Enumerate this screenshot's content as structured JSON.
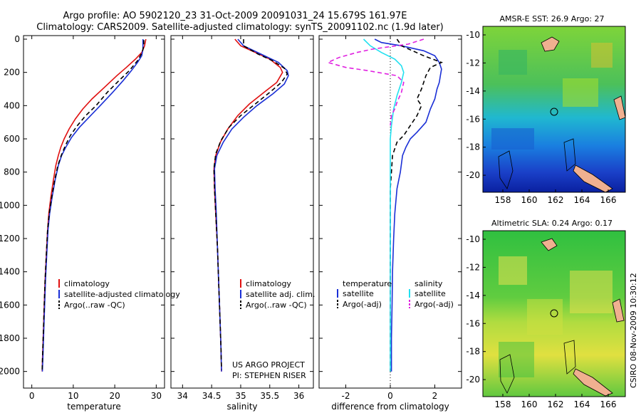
{
  "header": {
    "line1": "Argo profile: AO 5902120_23 31-Oct-2009 20091031_24 15.679S 161.97E",
    "line2": "Climatology: CARS2009. Satellite-adjusted climatology: synTS_20091102.nc (1.9d later)"
  },
  "colors": {
    "clim": "#e01010",
    "sat": "#1a2fd6",
    "argo": "#000000",
    "sal_sat": "#22e0f0",
    "sal_argo": "#e020e0",
    "land": "#f0b090"
  },
  "chart_data": [
    {
      "type": "line",
      "name": "temperature-profile",
      "xlabel": "temperature",
      "xlim": [
        -2,
        32
      ],
      "ylim": [
        0,
        2100
      ],
      "xticks": [
        0,
        10,
        20,
        30
      ],
      "yticks": [
        0,
        200,
        400,
        600,
        800,
        1000,
        1200,
        1400,
        1600,
        1800,
        2000
      ],
      "ytick_labels": [
        "0",
        "200",
        "400",
        "600",
        "800",
        "1000",
        "1200",
        "1400",
        "1600",
        "1800",
        "2000"
      ],
      "legend": {
        "items": [
          "climatology",
          "satellite-adjusted climatology",
          "Argo(..raw -QC)"
        ],
        "position": "lower-right"
      },
      "series": [
        {
          "name": "climatology",
          "color": "#e01010",
          "dash": "",
          "points": [
            [
              27.5,
              0
            ],
            [
              27.2,
              40
            ],
            [
              26.5,
              80
            ],
            [
              25,
              120
            ],
            [
              22.8,
              170
            ],
            [
              20.5,
              220
            ],
            [
              17.5,
              290
            ],
            [
              14.5,
              360
            ],
            [
              12.3,
              420
            ],
            [
              10.5,
              480
            ],
            [
              9,
              540
            ],
            [
              7.8,
              600
            ],
            [
              7,
              650
            ],
            [
              6.4,
              700
            ],
            [
              5.8,
              760
            ],
            [
              5.2,
              850
            ],
            [
              4.6,
              950
            ],
            [
              4.1,
              1050
            ],
            [
              3.8,
              1150
            ],
            [
              3.5,
              1300
            ],
            [
              3.2,
              1450
            ],
            [
              3,
              1600
            ],
            [
              2.8,
              1750
            ],
            [
              2.6,
              1900
            ],
            [
              2.5,
              2000
            ]
          ]
        },
        {
          "name": "satellite-adjusted climatology",
          "color": "#1a2fd6",
          "dash": "",
          "points": [
            [
              26.8,
              0
            ],
            [
              26.8,
              60
            ],
            [
              26.5,
              100
            ],
            [
              25.5,
              140
            ],
            [
              24,
              190
            ],
            [
              22,
              250
            ],
            [
              19.5,
              320
            ],
            [
              16.5,
              400
            ],
            [
              13.8,
              470
            ],
            [
              11.5,
              530
            ],
            [
              9.6,
              590
            ],
            [
              8.2,
              650
            ],
            [
              7.2,
              700
            ],
            [
              6.4,
              760
            ],
            [
              5.6,
              850
            ],
            [
              4.9,
              950
            ],
            [
              4.3,
              1050
            ],
            [
              3.9,
              1150
            ],
            [
              3.6,
              1300
            ],
            [
              3.3,
              1450
            ],
            [
              3.1,
              1600
            ],
            [
              2.9,
              1750
            ],
            [
              2.7,
              1900
            ],
            [
              2.55,
              2000
            ]
          ]
        },
        {
          "name": "Argo(..raw -QC)",
          "color": "#000000",
          "dash": "6,4",
          "points": [
            [
              27,
              5
            ],
            [
              27,
              40
            ],
            [
              26.6,
              80
            ],
            [
              25.5,
              130
            ],
            [
              23.5,
              190
            ],
            [
              21,
              250
            ],
            [
              18.2,
              320
            ],
            [
              15.5,
              400
            ],
            [
              13,
              460
            ],
            [
              11,
              520
            ],
            [
              9.3,
              580
            ],
            [
              8.1,
              640
            ],
            [
              7.1,
              700
            ],
            [
              6.3,
              760
            ],
            [
              5.5,
              850
            ],
            [
              4.8,
              950
            ],
            [
              4.2,
              1050
            ],
            [
              3.8,
              1150
            ],
            [
              3.5,
              1300
            ],
            [
              3.2,
              1450
            ],
            [
              3,
              1600
            ],
            [
              2.8,
              1750
            ],
            [
              2.6,
              1900
            ],
            [
              2.5,
              1990
            ]
          ]
        }
      ]
    },
    {
      "type": "line",
      "name": "salinity-profile",
      "xlabel": "salinity",
      "xlim": [
        33.8,
        36.25
      ],
      "ylim": [
        0,
        2100
      ],
      "xticks": [
        34,
        34.5,
        35,
        35.5,
        36
      ],
      "legend": {
        "items": [
          "climatology",
          "satellite adj. clim.",
          "Argo(..raw -QC)"
        ],
        "position": "lower-right"
      },
      "annotations": [
        "US ARGO PROJECT",
        "PI: STEPHEN RISER"
      ],
      "series": [
        {
          "name": "climatology",
          "color": "#e01010",
          "dash": "",
          "points": [
            [
              34.9,
              0
            ],
            [
              35,
              40
            ],
            [
              35.25,
              80
            ],
            [
              35.5,
              120
            ],
            [
              35.68,
              170
            ],
            [
              35.72,
              200
            ],
            [
              35.62,
              260
            ],
            [
              35.4,
              320
            ],
            [
              35.15,
              390
            ],
            [
              34.95,
              460
            ],
            [
              34.78,
              540
            ],
            [
              34.65,
              620
            ],
            [
              34.57,
              700
            ],
            [
              34.54,
              780
            ],
            [
              34.55,
              900
            ],
            [
              34.57,
              1050
            ],
            [
              34.6,
              1250
            ],
            [
              34.62,
              1450
            ],
            [
              34.64,
              1650
            ],
            [
              34.66,
              1850
            ],
            [
              34.67,
              2000
            ]
          ]
        },
        {
          "name": "satellite adj. clim.",
          "color": "#1a2fd6",
          "dash": "",
          "points": [
            [
              34.95,
              0
            ],
            [
              35.05,
              40
            ],
            [
              35.35,
              90
            ],
            [
              35.65,
              140
            ],
            [
              35.8,
              190
            ],
            [
              35.82,
              220
            ],
            [
              35.75,
              270
            ],
            [
              35.55,
              330
            ],
            [
              35.28,
              400
            ],
            [
              35.05,
              470
            ],
            [
              34.85,
              540
            ],
            [
              34.7,
              620
            ],
            [
              34.59,
              700
            ],
            [
              34.55,
              780
            ],
            [
              34.56,
              900
            ],
            [
              34.58,
              1050
            ],
            [
              34.6,
              1250
            ],
            [
              34.62,
              1450
            ],
            [
              34.64,
              1650
            ],
            [
              34.66,
              1850
            ],
            [
              34.67,
              2000
            ]
          ]
        },
        {
          "name": "Argo(..raw -QC)",
          "color": "#000000",
          "dash": "6,4",
          "points": [
            [
              35.05,
              0
            ],
            [
              35.05,
              40
            ],
            [
              35.3,
              90
            ],
            [
              35.55,
              130
            ],
            [
              35.75,
              175
            ],
            [
              35.8,
              210
            ],
            [
              35.7,
              260
            ],
            [
              35.5,
              320
            ],
            [
              35.25,
              390
            ],
            [
              35,
              460
            ],
            [
              34.8,
              530
            ],
            [
              34.66,
              610
            ],
            [
              34.57,
              690
            ],
            [
              34.54,
              780
            ],
            [
              34.55,
              900
            ],
            [
              34.57,
              1050
            ],
            [
              34.6,
              1250
            ],
            [
              34.62,
              1450
            ],
            [
              34.64,
              1650
            ],
            [
              34.66,
              1850
            ],
            [
              34.67,
              1990
            ]
          ]
        }
      ]
    },
    {
      "type": "line",
      "name": "difference-profile",
      "xlabel": "difference from climatology",
      "xlim": [
        -3.2,
        3.2
      ],
      "ylim": [
        0,
        2100
      ],
      "xticks": [
        -2,
        0,
        2
      ],
      "legend": {
        "headers": [
          "temperature",
          "salinity"
        ],
        "items": [
          "satellite",
          "Argo(-adj)",
          "satellite",
          "Argo(-adj)"
        ],
        "position": "lower-center"
      },
      "series": [
        {
          "name": "temperature satellite",
          "color": "#1a2fd6",
          "dash": "",
          "points": [
            [
              -0.7,
              0
            ],
            [
              -0.4,
              20
            ],
            [
              0.5,
              40
            ],
            [
              1.5,
              70
            ],
            [
              2,
              100
            ],
            [
              2.2,
              140
            ],
            [
              2.3,
              180
            ],
            [
              2.25,
              220
            ],
            [
              2.2,
              260
            ],
            [
              2.1,
              300
            ],
            [
              2,
              360
            ],
            [
              1.8,
              420
            ],
            [
              1.6,
              500
            ],
            [
              1.2,
              560
            ],
            [
              0.9,
              600
            ],
            [
              0.7,
              650
            ],
            [
              0.55,
              700
            ],
            [
              0.45,
              800
            ],
            [
              0.3,
              900
            ],
            [
              0.2,
              1050
            ],
            [
              0.15,
              1200
            ],
            [
              0.1,
              1400
            ],
            [
              0.08,
              1600
            ],
            [
              0.05,
              1800
            ],
            [
              0.05,
              2000
            ]
          ]
        },
        {
          "name": "temperature Argo(-adj)",
          "color": "#000000",
          "dash": "6,4",
          "points": [
            [
              0.3,
              0
            ],
            [
              0.5,
              40
            ],
            [
              1.5,
              100
            ],
            [
              2.3,
              140
            ],
            [
              1.8,
              170
            ],
            [
              1.6,
              220
            ],
            [
              1.4,
              300
            ],
            [
              1.2,
              360
            ],
            [
              1.4,
              400
            ],
            [
              1.2,
              460
            ],
            [
              0.9,
              520
            ],
            [
              0.6,
              580
            ],
            [
              0.3,
              620
            ],
            [
              0.1,
              700
            ],
            [
              0.05,
              800
            ],
            [
              0,
              900
            ],
            [
              0,
              1050
            ],
            [
              0,
              1200
            ],
            [
              0,
              1400
            ],
            [
              0,
              1600
            ],
            [
              0,
              1800
            ],
            [
              0,
              2000
            ]
          ]
        },
        {
          "name": "salinity satellite",
          "color": "#22e0f0",
          "dash": "",
          "points": [
            [
              -1.2,
              0
            ],
            [
              -0.9,
              40
            ],
            [
              -0.4,
              80
            ],
            [
              0.2,
              120
            ],
            [
              0.5,
              160
            ],
            [
              0.6,
              200
            ],
            [
              0.5,
              260
            ],
            [
              0.3,
              340
            ],
            [
              0.15,
              420
            ],
            [
              0.05,
              520
            ],
            [
              0,
              600
            ],
            [
              0,
              700
            ],
            [
              0,
              800
            ],
            [
              0,
              900
            ],
            [
              0,
              1050
            ],
            [
              0,
              1200
            ],
            [
              0,
              1400
            ],
            [
              0,
              1600
            ],
            [
              0,
              1800
            ],
            [
              0,
              2000
            ]
          ]
        },
        {
          "name": "salinity Argo(-adj)",
          "color": "#e020e0",
          "dash": "6,4",
          "points": [
            [
              1.5,
              0
            ],
            [
              0.8,
              30
            ],
            [
              -0.8,
              60
            ],
            [
              -1.5,
              80
            ],
            [
              -2.3,
              110
            ],
            [
              -2.8,
              140
            ],
            [
              -2,
              170
            ],
            [
              -1,
              190
            ],
            [
              0.3,
              220
            ],
            [
              0.6,
              260
            ],
            [
              0.5,
              320
            ],
            [
              0.3,
              380
            ],
            [
              0.2,
              420
            ],
            [
              0.05,
              460
            ],
            [
              0,
              520
            ]
          ]
        }
      ]
    }
  ],
  "maps": {
    "sst": {
      "title": "AMSR-E SST: 26.9 Argo: 27",
      "yticks": [
        "-10",
        "-12",
        "-14",
        "-16",
        "-18",
        "-20"
      ],
      "xticks": [
        "158",
        "160",
        "162",
        "164",
        "166"
      ]
    },
    "sla": {
      "title": "Altimetric SLA: 0.24 Argo: 0.17",
      "yticks": [
        "-10",
        "-12",
        "-14",
        "-16",
        "-18",
        "-20"
      ],
      "xticks": [
        "158",
        "160",
        "162",
        "164",
        "166"
      ]
    }
  },
  "footer": {
    "credit": "CSIRO 08-Nov-2009 10:30:12"
  }
}
